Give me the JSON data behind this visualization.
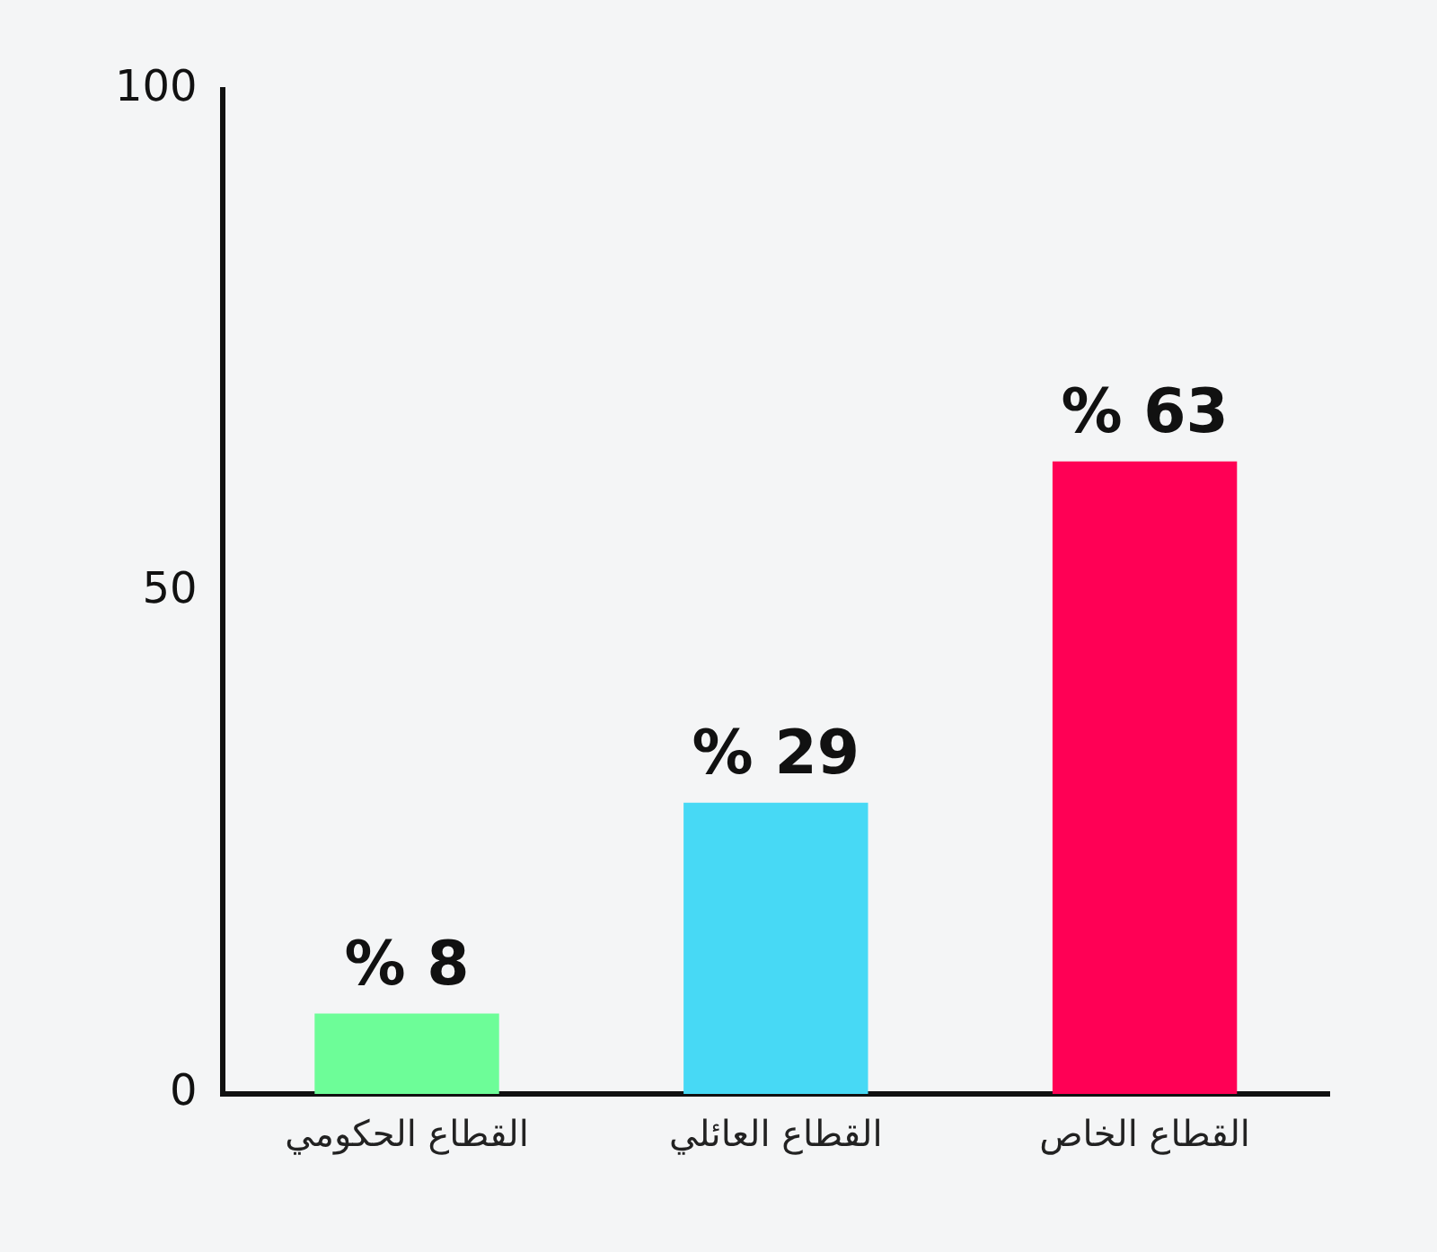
{
  "chart_data": {
    "type": "bar",
    "categories": [
      "القطاع الحكومي",
      "القطاع العائلي",
      "القطاع الخاص"
    ],
    "values": [
      8,
      29,
      63
    ],
    "colors": [
      "#6dfd98",
      "#47d9f5",
      "#ff0055"
    ],
    "value_labels": [
      "% 8",
      "% 29",
      "% 63"
    ],
    "ylim": [
      0,
      100
    ],
    "yticks": [
      0,
      50,
      100
    ],
    "grid": false,
    "legend": false
  }
}
